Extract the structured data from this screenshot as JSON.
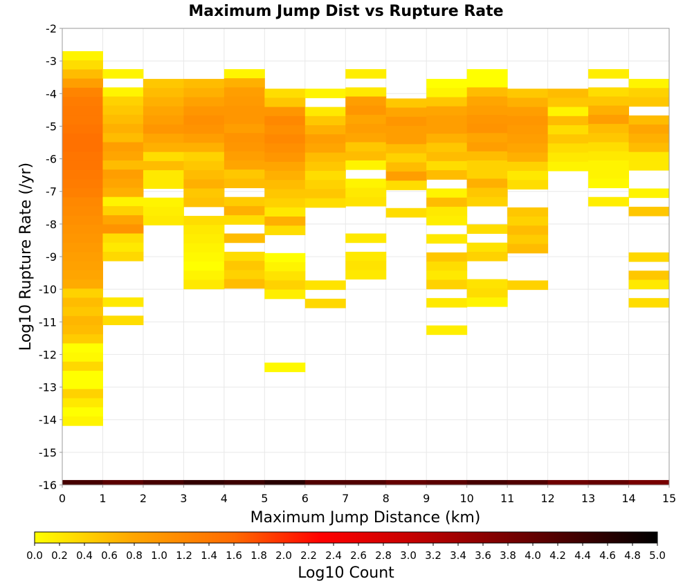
{
  "chart_data": {
    "type": "heatmap",
    "title": "Maximum Jump Dist vs Rupture Rate",
    "xlabel": "Maximum Jump Distance (km)",
    "ylabel": "Log10 Rupture Rate (/yr)",
    "colorbar_label": "Log10 Count",
    "xlim": [
      0,
      15
    ],
    "ylim": [
      -16,
      -2
    ],
    "x_ticks": [
      "0",
      "1",
      "2",
      "3",
      "4",
      "5",
      "6",
      "7",
      "8",
      "9",
      "10",
      "11",
      "12",
      "13",
      "14",
      "15"
    ],
    "y_ticks": [
      "-2",
      "-3",
      "-4",
      "-5",
      "-6",
      "-7",
      "-8",
      "-9",
      "-10",
      "-11",
      "-12",
      "-13",
      "-14",
      "-15",
      "-16"
    ],
    "colorbar_range": [
      0,
      5
    ],
    "colorbar_ticks": [
      "0.0",
      "0.2",
      "0.4",
      "0.6",
      "0.8",
      "1.0",
      "1.2",
      "1.4",
      "1.6",
      "1.8",
      "2.0",
      "2.2",
      "2.4",
      "2.6",
      "2.8",
      "3.0",
      "3.2",
      "3.4",
      "3.6",
      "3.8",
      "4.0",
      "4.2",
      "4.4",
      "4.6",
      "4.8",
      "5.0"
    ],
    "colormap": [
      "#ffff00",
      "#ffa500",
      "#ff6a00",
      "#ff0000",
      "#c80000",
      "#640000",
      "#000000"
    ],
    "grid": true,
    "cell_height": 0.28,
    "columns": [
      {
        "x": 0,
        "start_y": -2.7,
        "values": [
          0.1,
          0.3,
          0.6,
          0.9,
          1.25,
          1.35,
          1.4,
          1.4,
          1.45,
          1.5,
          1.5,
          1.45,
          1.45,
          1.4,
          1.35,
          1.3,
          1.2,
          1.15,
          1.1,
          1.05,
          1.0,
          0.95,
          0.9,
          0.85,
          0.8,
          0.75,
          0.4,
          0.6,
          0.5,
          0.65,
          0.6,
          0.45,
          0.0,
          0.05,
          0.35,
          0.0,
          0.0,
          0.4,
          0.2,
          0.0,
          0.1
        ]
      },
      {
        "x": 1,
        "start_y": -3.25,
        "values": [
          0.1,
          null,
          0.1,
          0.4,
          0.5,
          0.6,
          0.7,
          0.6,
          0.9,
          0.8,
          0.6,
          0.9,
          0.8,
          0.7,
          0.1,
          0.4,
          0.8,
          1.05,
          0.3,
          0.2,
          0.35,
          null,
          null,
          null,
          null,
          0.2,
          null,
          0.3
        ]
      },
      {
        "x": 2,
        "start_y": -3.55,
        "values": [
          0.5,
          0.6,
          0.7,
          0.8,
          0.9,
          1.0,
          0.8,
          0.7,
          0.3,
          0.6,
          0.2,
          0.2,
          null,
          0.1,
          0.15,
          0.2
        ]
      },
      {
        "x": 3,
        "start_y": -3.55,
        "values": [
          0.6,
          0.7,
          0.85,
          1.0,
          1.1,
          1.05,
          0.9,
          0.7,
          0.4,
          0.5,
          0.6,
          0.7,
          0.5,
          0.55,
          null,
          0.3,
          0.2,
          0.15,
          0.1,
          0.05,
          0.0,
          0.1,
          0.2
        ]
      },
      {
        "x": 4,
        "start_y": -3.25,
        "values": [
          0.1,
          0.7,
          0.9,
          0.95,
          1.0,
          1.0,
          0.9,
          1.05,
          1.0,
          0.9,
          0.8,
          0.5,
          0.6,
          null,
          0.45,
          0.7,
          0.3,
          null,
          0.6,
          null,
          0.3,
          0.5,
          0.4,
          0.6
        ]
      },
      {
        "x": 5,
        "start_y": -3.85,
        "values": [
          0.3,
          0.5,
          1.0,
          1.2,
          1.1,
          1.2,
          1.1,
          1.0,
          0.8,
          0.7,
          0.6,
          0.5,
          0.4,
          0.2,
          0.7,
          0.3,
          null,
          null,
          0.0,
          0.1,
          0.25,
          0.4,
          0.15,
          null,
          null,
          null,
          null,
          null,
          null,
          null,
          0.05
        ]
      },
      {
        "x": 6,
        "start_y": -3.85,
        "values": [
          0.1,
          null,
          0.2,
          0.5,
          0.7,
          0.9,
          0.8,
          0.6,
          0.5,
          0.3,
          0.4,
          0.5,
          0.3,
          null,
          null,
          null,
          null,
          null,
          null,
          null,
          null,
          0.25,
          null,
          0.35
        ]
      },
      {
        "x": 7,
        "start_y": -3.25,
        "values": [
          0.15,
          null,
          0.2,
          0.9,
          1.0,
          0.8,
          0.9,
          0.8,
          0.5,
          0.6,
          0.1,
          null,
          0.1,
          0.2,
          0.25,
          null,
          null,
          null,
          0.2,
          null,
          0.2,
          0.25,
          0.2
        ]
      },
      {
        "x": 8,
        "start_y": -4.15,
        "values": [
          0.5,
          0.8,
          1.0,
          0.9,
          0.9,
          0.6,
          0.4,
          0.6,
          0.9,
          0.3,
          null,
          null,
          0.3
        ]
      },
      {
        "x": 9,
        "start_y": -3.55,
        "values": [
          0.0,
          0.1,
          0.5,
          0.8,
          0.9,
          0.9,
          0.7,
          0.5,
          0.6,
          0.3,
          0.6,
          null,
          0.1,
          0.6,
          0.2,
          0.15,
          null,
          0.2,
          null,
          0.5,
          0.3,
          0.2,
          0.4,
          null,
          0.2,
          null,
          null,
          0.15
        ]
      },
      {
        "x": 10,
        "start_y": -3.25,
        "values": [
          0.0,
          0.0,
          0.6,
          0.8,
          0.9,
          1.0,
          1.05,
          0.8,
          0.9,
          0.6,
          0.4,
          0.4,
          0.7,
          0.5,
          0.4,
          null,
          null,
          0.3,
          null,
          0.25,
          0.4,
          null,
          null,
          0.25,
          0.3,
          0.1
        ]
      },
      {
        "x": 11,
        "start_y": -3.85,
        "values": [
          0.5,
          0.7,
          0.9,
          1.0,
          0.95,
          0.9,
          0.8,
          0.7,
          0.4,
          0.2,
          0.3,
          null,
          null,
          0.5,
          0.4,
          0.6,
          0.45,
          0.6,
          null,
          null,
          null,
          0.4
        ]
      },
      {
        "x": 12,
        "start_y": -3.85,
        "values": [
          0.6,
          0.5,
          0.1,
          0.6,
          0.3,
          0.5,
          0.3,
          0.2,
          0.1
        ]
      },
      {
        "x": 13,
        "start_y": -3.25,
        "values": [
          0.15,
          null,
          0.3,
          0.5,
          0.7,
          0.9,
          0.6,
          0.5,
          0.3,
          0.2,
          0.1,
          0.1,
          0.05,
          null,
          0.15
        ]
      },
      {
        "x": 14,
        "start_y": -3.55,
        "values": [
          0.1,
          0.4,
          0.5,
          null,
          0.6,
          0.8,
          0.7,
          0.6,
          0.2,
          0.2,
          null,
          null,
          0.1,
          null,
          0.5,
          null,
          null,
          null,
          null,
          0.35,
          null,
          0.5,
          0.2,
          null,
          0.3
        ]
      }
    ],
    "bottom_row": {
      "y": -15.85,
      "values": [
        4.3,
        4.1,
        4.3,
        4.5,
        4.4,
        4.6,
        4.2,
        4.2,
        4.0,
        4.1,
        4.3,
        4.2,
        3.9,
        4.0,
        3.8
      ]
    }
  }
}
